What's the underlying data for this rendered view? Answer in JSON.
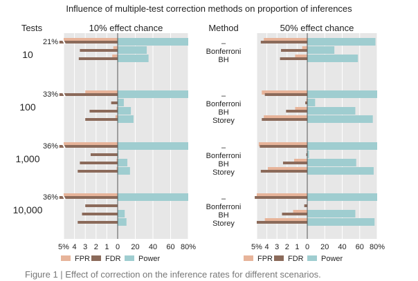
{
  "figure": {
    "title": "Influence of multiple-test correction methods on proportion of inferences",
    "tests_header": "Tests",
    "method_header": "Method",
    "caption_fragment": "Figure 1 | Effect of correction on the inference rates for different scenarios."
  },
  "chart_data": {
    "type": "bar",
    "groups": [
      "10",
      "100",
      "1,000",
      "10,000"
    ],
    "methods": [
      "–",
      "Bonferroni",
      "BH",
      "Storey"
    ],
    "row_labels": [
      "–",
      "Bonferroni",
      "BH",
      "Storey"
    ],
    "left_axis": {
      "ticks": [
        "5%",
        "4",
        "3",
        "2",
        "1",
        "0"
      ],
      "range": [
        0,
        5
      ],
      "unit": "%"
    },
    "right_axis": {
      "ticks": [
        "0",
        "20",
        "40",
        "60",
        "80%"
      ],
      "range": [
        0,
        80
      ],
      "unit": "%"
    },
    "legend": [
      {
        "name": "FPR",
        "color": "#e7b49a"
      },
      {
        "name": "FDR",
        "color": "#8b6a5a"
      },
      {
        "name": "Power",
        "color": "#9fcdd0"
      }
    ],
    "panels": [
      {
        "title": "10% effect chance",
        "overflow_labels": [
          "21%",
          "33%",
          "36%",
          "36%"
        ],
        "groups": [
          {
            "test": "10",
            "rows": [
              {
                "method": "–",
                "FPR": 5,
                "FDR": 21,
                "Power": 80
              },
              {
                "method": "Bonferroni",
                "FPR": 0.4,
                "FDR": 3.5,
                "Power": 33
              },
              {
                "method": "BH",
                "FPR": 0.5,
                "FDR": 3.6,
                "Power": 35
              }
            ]
          },
          {
            "test": "100",
            "rows": [
              {
                "method": "–",
                "FPR": 3,
                "FDR": 33,
                "Power": 80
              },
              {
                "method": "Bonferroni",
                "FPR": 0,
                "FDR": 0.6,
                "Power": 7
              },
              {
                "method": "BH",
                "FPR": 0.1,
                "FDR": 2.6,
                "Power": 15
              },
              {
                "method": "Storey",
                "FPR": 0.2,
                "FDR": 3.0,
                "Power": 18
              }
            ]
          },
          {
            "test": "1,000",
            "rows": [
              {
                "method": "–",
                "FPR": 5,
                "FDR": 36,
                "Power": 80
              },
              {
                "method": "Bonferroni",
                "FPR": 0,
                "FDR": 2.5,
                "Power": 1
              },
              {
                "method": "BH",
                "FPR": 0.1,
                "FDR": 3.5,
                "Power": 11
              },
              {
                "method": "Storey",
                "FPR": 0.1,
                "FDR": 3.7,
                "Power": 14
              }
            ]
          },
          {
            "test": "10,000",
            "rows": [
              {
                "method": "–",
                "FPR": 5,
                "FDR": 36,
                "Power": 80
              },
              {
                "method": "Bonferroni",
                "FPR": 0,
                "FDR": 3.0,
                "Power": 0
              },
              {
                "method": "BH",
                "FPR": 0,
                "FDR": 3.3,
                "Power": 8
              },
              {
                "method": "Storey",
                "FPR": 0,
                "FDR": 3.7,
                "Power": 10
              }
            ]
          }
        ]
      },
      {
        "title": "50% effect chance",
        "groups": [
          {
            "test": "10",
            "rows": [
              {
                "method": "–",
                "FPR": 4.3,
                "FDR": 4.6,
                "Power": 78
              },
              {
                "method": "Bonferroni",
                "FPR": 0.5,
                "FDR": 2.6,
                "Power": 31
              },
              {
                "method": "BH",
                "FPR": 1.2,
                "FDR": 2.7,
                "Power": 58
              }
            ]
          },
          {
            "test": "100",
            "rows": [
              {
                "method": "–",
                "FPR": 4.5,
                "FDR": 4.2,
                "Power": 80
              },
              {
                "method": "Bonferroni",
                "FPR": 0.1,
                "FDR": 0.2,
                "Power": 9
              },
              {
                "method": "BH",
                "FPR": 1.2,
                "FDR": 2.1,
                "Power": 55
              },
              {
                "method": "Storey",
                "FPR": 4.3,
                "FDR": 4.5,
                "Power": 75
              }
            ]
          },
          {
            "test": "1,000",
            "rows": [
              {
                "method": "–",
                "FPR": 4.8,
                "FDR": 4.7,
                "Power": 80
              },
              {
                "method": "Bonferroni",
                "FPR": 0,
                "FDR": 0.1,
                "Power": 2
              },
              {
                "method": "BH",
                "FPR": 1.3,
                "FDR": 2.4,
                "Power": 56
              },
              {
                "method": "Storey",
                "FPR": 3.9,
                "FDR": 4.6,
                "Power": 76
              }
            ]
          },
          {
            "test": "10,000",
            "rows": [
              {
                "method": "–",
                "FPR": 5,
                "FDR": 5.2,
                "Power": 80
              },
              {
                "method": "Bonferroni",
                "FPR": 0,
                "FDR": 0.3,
                "Power": 0
              },
              {
                "method": "BH",
                "FPR": 1.4,
                "FDR": 2.5,
                "Power": 55
              },
              {
                "method": "Storey",
                "FPR": 4.2,
                "FDR": 5.0,
                "Power": 77
              }
            ]
          }
        ]
      }
    ]
  }
}
